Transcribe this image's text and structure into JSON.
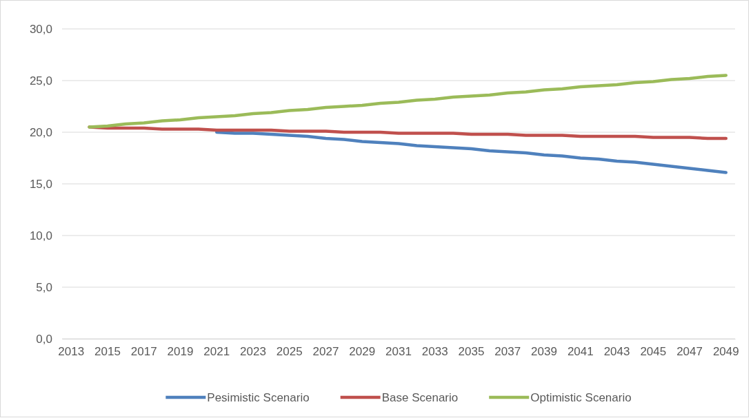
{
  "chart_data": {
    "type": "line",
    "categories": [
      "2013",
      null,
      "2015",
      null,
      "2017",
      null,
      "2019",
      null,
      "2021",
      null,
      "2023",
      null,
      "2025",
      null,
      "2027",
      null,
      "2029",
      null,
      "2031",
      null,
      "2033",
      null,
      "2035",
      null,
      "2037",
      null,
      "2039",
      null,
      "2041",
      null,
      "2043",
      null,
      "2045",
      null,
      "2047",
      null,
      "2049"
    ],
    "series": [
      {
        "name": "Pesimistic Scenario",
        "color": "#4f81bd",
        "values": [
          null,
          null,
          null,
          null,
          null,
          null,
          null,
          null,
          20.0,
          19.9,
          19.9,
          19.8,
          19.7,
          19.6,
          19.4,
          19.3,
          19.1,
          19.0,
          18.9,
          18.7,
          18.6,
          18.5,
          18.4,
          18.2,
          18.1,
          18.0,
          17.8,
          17.7,
          17.5,
          17.4,
          17.2,
          17.1,
          16.9,
          16.7,
          16.5,
          16.3,
          16.1
        ]
      },
      {
        "name": "Base Scenario",
        "color": "#c0504d",
        "values": [
          null,
          20.5,
          20.4,
          20.4,
          20.4,
          20.3,
          20.3,
          20.3,
          20.2,
          20.2,
          20.2,
          20.2,
          20.1,
          20.1,
          20.1,
          20.0,
          20.0,
          20.0,
          19.9,
          19.9,
          19.9,
          19.9,
          19.8,
          19.8,
          19.8,
          19.7,
          19.7,
          19.7,
          19.6,
          19.6,
          19.6,
          19.6,
          19.5,
          19.5,
          19.5,
          19.4,
          19.4
        ]
      },
      {
        "name": "Optimistic Scenario",
        "color": "#9bbb59",
        "values": [
          null,
          20.5,
          20.6,
          20.8,
          20.9,
          21.1,
          21.2,
          21.4,
          21.5,
          21.6,
          21.8,
          21.9,
          22.1,
          22.2,
          22.4,
          22.5,
          22.6,
          22.8,
          22.9,
          23.1,
          23.2,
          23.4,
          23.5,
          23.6,
          23.8,
          23.9,
          24.1,
          24.2,
          24.4,
          24.5,
          24.6,
          24.8,
          24.9,
          25.1,
          25.2,
          25.4,
          25.5
        ]
      }
    ],
    "ylim": [
      0,
      30
    ],
    "yticks": [
      {
        "value": 0,
        "label": "0,0"
      },
      {
        "value": 5,
        "label": "5,0"
      },
      {
        "value": 10,
        "label": "10,0"
      },
      {
        "value": 15,
        "label": "15,0"
      },
      {
        "value": 20,
        "label": "20,0"
      },
      {
        "value": 25,
        "label": "25,0"
      },
      {
        "value": 30,
        "label": "30,0"
      }
    ],
    "grid": "y",
    "legend": "bottom",
    "line_style": "solid",
    "marker": "none"
  }
}
